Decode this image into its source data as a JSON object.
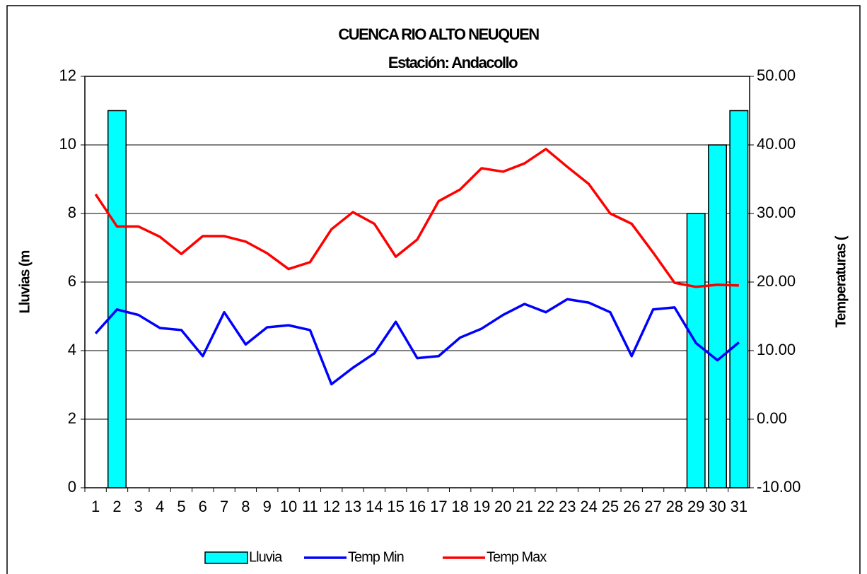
{
  "chart_data": {
    "type": "bar_line",
    "title": "CUENCA RIO ALTO NEUQUEN",
    "subtitle": "Estación: Andacollo",
    "ylabel": "Lluvias (m",
    "y2label": "Temperaturas (",
    "categories": [
      "1",
      "2",
      "3",
      "4",
      "5",
      "6",
      "7",
      "8",
      "9",
      "10",
      "11",
      "12",
      "13",
      "14",
      "15",
      "16",
      "17",
      "18",
      "19",
      "20",
      "21",
      "22",
      "23",
      "24",
      "25",
      "26",
      "27",
      "28",
      "29",
      "30",
      "31"
    ],
    "series": [
      {
        "name": "Lluvia",
        "color": "#00ffff",
        "kind": "bar",
        "values": [
          0,
          11,
          0,
          0,
          0,
          0,
          0,
          0,
          0,
          0,
          0,
          0,
          0,
          0,
          0,
          0,
          0,
          0,
          0,
          0,
          0,
          0,
          0,
          0,
          0,
          0,
          0,
          0,
          8,
          10,
          11
        ]
      },
      {
        "name": "Temp Min",
        "color": "#0000ff",
        "kind": "line",
        "axis": "y2",
        "values": [
          12.5,
          16.0,
          15.2,
          13.3,
          13.0,
          9.2,
          15.6,
          10.9,
          13.4,
          13.7,
          13.0,
          5.1,
          7.5,
          9.6,
          14.2,
          8.9,
          9.2,
          11.9,
          13.2,
          15.2,
          16.8,
          15.6,
          17.5,
          17.0,
          15.6,
          9.2,
          16.0,
          16.3,
          11.1,
          8.6,
          11.2
        ]
      },
      {
        "name": "Temp Max",
        "color": "#ff0000",
        "kind": "line",
        "axis": "y2",
        "values": [
          32.8,
          28.1,
          28.1,
          26.6,
          24.1,
          26.7,
          26.7,
          25.9,
          24.2,
          21.9,
          22.9,
          27.7,
          30.2,
          28.5,
          23.7,
          26.2,
          31.8,
          33.5,
          36.6,
          36.1,
          37.3,
          39.4,
          36.8,
          34.3,
          30.0,
          28.5,
          24.3,
          19.9,
          19.3,
          19.6,
          19.5
        ]
      }
    ],
    "ylim": [
      0,
      12
    ],
    "yticks": [
      0,
      2,
      4,
      6,
      8,
      10,
      12
    ],
    "y2lim": [
      -10,
      50
    ],
    "y2ticks": [
      {
        "value": -10,
        "label": "-10.00"
      },
      {
        "value": 0,
        "label": "0.00"
      },
      {
        "value": 10,
        "label": "10.00"
      },
      {
        "value": 20,
        "label": "20.00"
      },
      {
        "value": 30,
        "label": "30.00"
      },
      {
        "value": 40,
        "label": "40.00"
      },
      {
        "value": 50,
        "label": "50.00"
      }
    ],
    "grid": true,
    "legend": "bottom"
  }
}
